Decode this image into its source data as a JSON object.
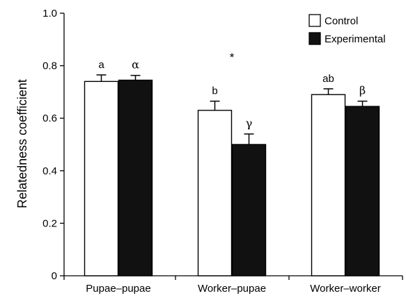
{
  "chart_data": {
    "type": "bar",
    "ylabel": "Relatedness coefficient",
    "ylim": [
      0,
      1.0
    ],
    "yticks": [
      "0",
      "0.2",
      "0.4",
      "0.6",
      "0.8",
      "1.0"
    ],
    "ytick_values": [
      0,
      0.2,
      0.4,
      0.6,
      0.8,
      1.0
    ],
    "categories": [
      "Pupae–pupae",
      "Worker–pupae",
      "Worker–worker"
    ],
    "series": [
      {
        "name": "Control",
        "color": "#ffffff",
        "values": [
          0.74,
          0.63,
          0.69
        ],
        "errors": [
          0.025,
          0.035,
          0.022
        ],
        "labels": [
          "a",
          "b",
          "ab"
        ]
      },
      {
        "name": "Experimental",
        "color": "#111111",
        "values": [
          0.745,
          0.5,
          0.645
        ],
        "errors": [
          0.018,
          0.04,
          0.02
        ],
        "labels": [
          "α",
          "γ",
          "β"
        ]
      }
    ],
    "annotations": [
      {
        "text": "*",
        "category_index": 1
      }
    ],
    "legend_position": "top-right",
    "grid": false
  }
}
